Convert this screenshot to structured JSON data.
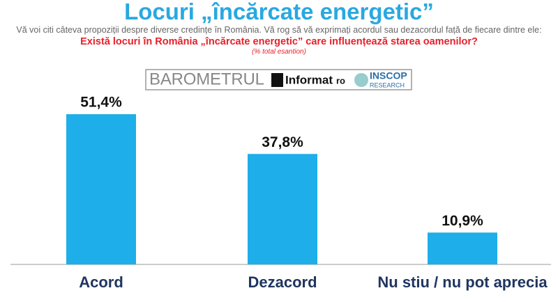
{
  "chart_data": {
    "type": "bar",
    "title": "Locuri „încărcate energetic”",
    "intro": "Vă voi citi câteva propoziții despre diverse credințe în România. Vă rog să vă exprimați acordul sau dezacordul față de fiecare dintre ele:",
    "question": "Există locuri în România „încărcate energetic” care influențează starea oamenilor?",
    "note": "(% total esantion)",
    "logo": {
      "barometer": "BAROMETRUL",
      "informat": "Informat",
      "informat_suffix": "ro",
      "inscop": "INSCOP",
      "research": "RESEARCH"
    },
    "categories": [
      "Acord",
      "Dezacord",
      "Nu stiu / nu pot aprecia"
    ],
    "values": [
      51.4,
      37.8,
      10.9
    ],
    "value_labels": [
      "51,4%",
      "37,8%",
      "10,9%"
    ],
    "color": "#1eaeea"
  }
}
